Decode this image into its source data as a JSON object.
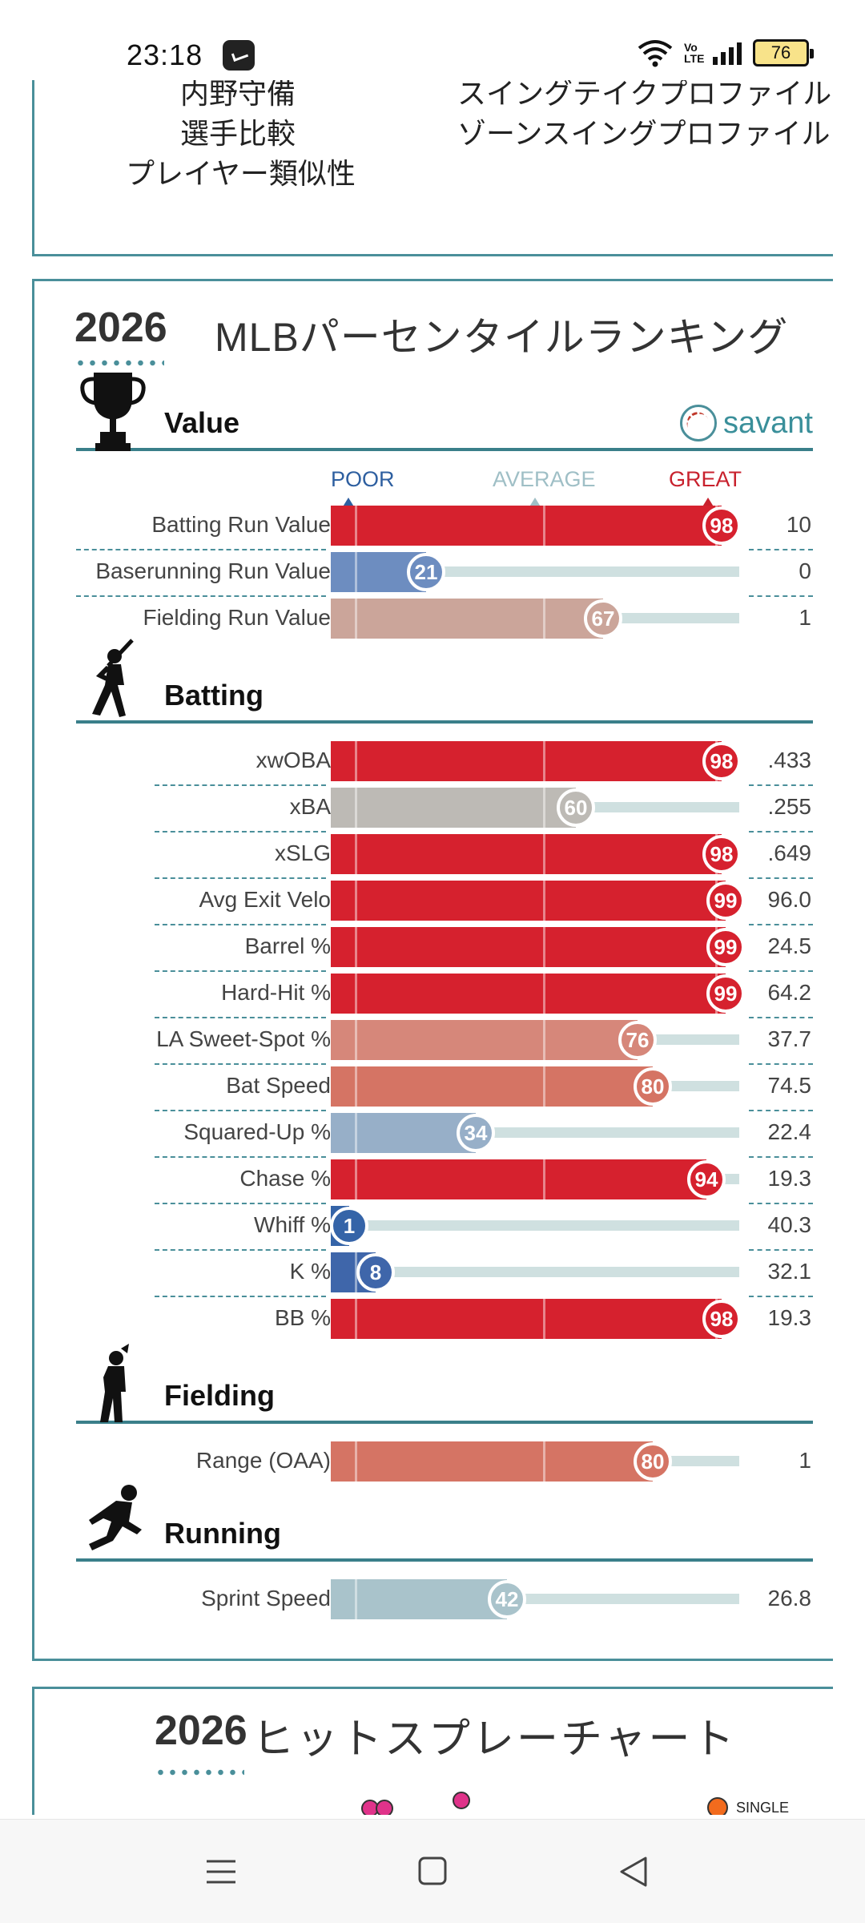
{
  "status_bar": {
    "time": "23:18",
    "volte": "Vo LTE",
    "battery": "76",
    "icons": [
      "app-icon",
      "wifi-icon",
      "volte-icon",
      "signal-icon",
      "battery-icon"
    ]
  },
  "top_links": {
    "partial_left": "内野守備",
    "partial_right": "スイングテイクプロファイル",
    "left": [
      "選手比較",
      "プレイヤー類似性"
    ],
    "right": [
      "ゾーンスイングプロファイル"
    ]
  },
  "percentile_card": {
    "year": "2026",
    "title": "MLBパーセンタイルランキング",
    "logo_text": "savant",
    "scale": {
      "poor": "POOR",
      "average": "AVERAGE",
      "great": "GREAT"
    },
    "sections": [
      {
        "title": "Value",
        "icon": "trophy-icon",
        "rows": [
          {
            "label": "Batting Run Value",
            "percentile": 98,
            "value": "10",
            "color": "#d6212e"
          },
          {
            "label": "Baserunning Run Value",
            "percentile": 21,
            "value": "0",
            "color": "#6d8dc0"
          },
          {
            "label": "Fielding Run Value",
            "percentile": 67,
            "value": "1",
            "color": "#cba59a"
          }
        ]
      },
      {
        "title": "Batting",
        "icon": "batter-icon",
        "rows": [
          {
            "label": "xwOBA",
            "percentile": 98,
            "value": ".433",
            "color": "#d6212e"
          },
          {
            "label": "xBA",
            "percentile": 60,
            "value": ".255",
            "color": "#bdbab5"
          },
          {
            "label": "xSLG",
            "percentile": 98,
            "value": ".649",
            "color": "#d6212e"
          },
          {
            "label": "Avg Exit Velo",
            "percentile": 99,
            "value": "96.0",
            "color": "#d6212e"
          },
          {
            "label": "Barrel %",
            "percentile": 99,
            "value": "24.5",
            "color": "#d6212e"
          },
          {
            "label": "Hard-Hit %",
            "percentile": 99,
            "value": "64.2",
            "color": "#d6212e"
          },
          {
            "label": "LA Sweet-Spot %",
            "percentile": 76,
            "value": "37.7",
            "color": "#d6877a"
          },
          {
            "label": "Bat Speed",
            "percentile": 80,
            "value": "74.5",
            "color": "#d57464"
          },
          {
            "label": "Squared-Up %",
            "percentile": 34,
            "value": "22.4",
            "color": "#97afc8"
          },
          {
            "label": "Chase %",
            "percentile": 94,
            "value": "19.3",
            "color": "#d6212e"
          },
          {
            "label": "Whiff %",
            "percentile": 1,
            "value": "40.3",
            "color": "#3564a8"
          },
          {
            "label": "K %",
            "percentile": 8,
            "value": "32.1",
            "color": "#3f66aa"
          },
          {
            "label": "BB %",
            "percentile": 98,
            "value": "19.3",
            "color": "#d6212e"
          }
        ]
      },
      {
        "title": "Fielding",
        "icon": "fielder-icon",
        "rows": [
          {
            "label": "Range (OAA)",
            "percentile": 80,
            "value": "1",
            "color": "#d57464"
          }
        ]
      },
      {
        "title": "Running",
        "icon": "runner-icon",
        "rows": [
          {
            "label": "Sprint Speed",
            "percentile": 42,
            "value": "26.8",
            "color": "#a9c3cb"
          }
        ]
      }
    ]
  },
  "spray_card": {
    "year": "2026",
    "title": "ヒットスプレーチャート",
    "legend": [
      {
        "label": "SINGLE",
        "color": "#f26b1d"
      }
    ],
    "dot_color": "#e0338a"
  },
  "nav_bar": {
    "icons": [
      "menu-icon",
      "home-icon",
      "back-icon"
    ]
  }
}
